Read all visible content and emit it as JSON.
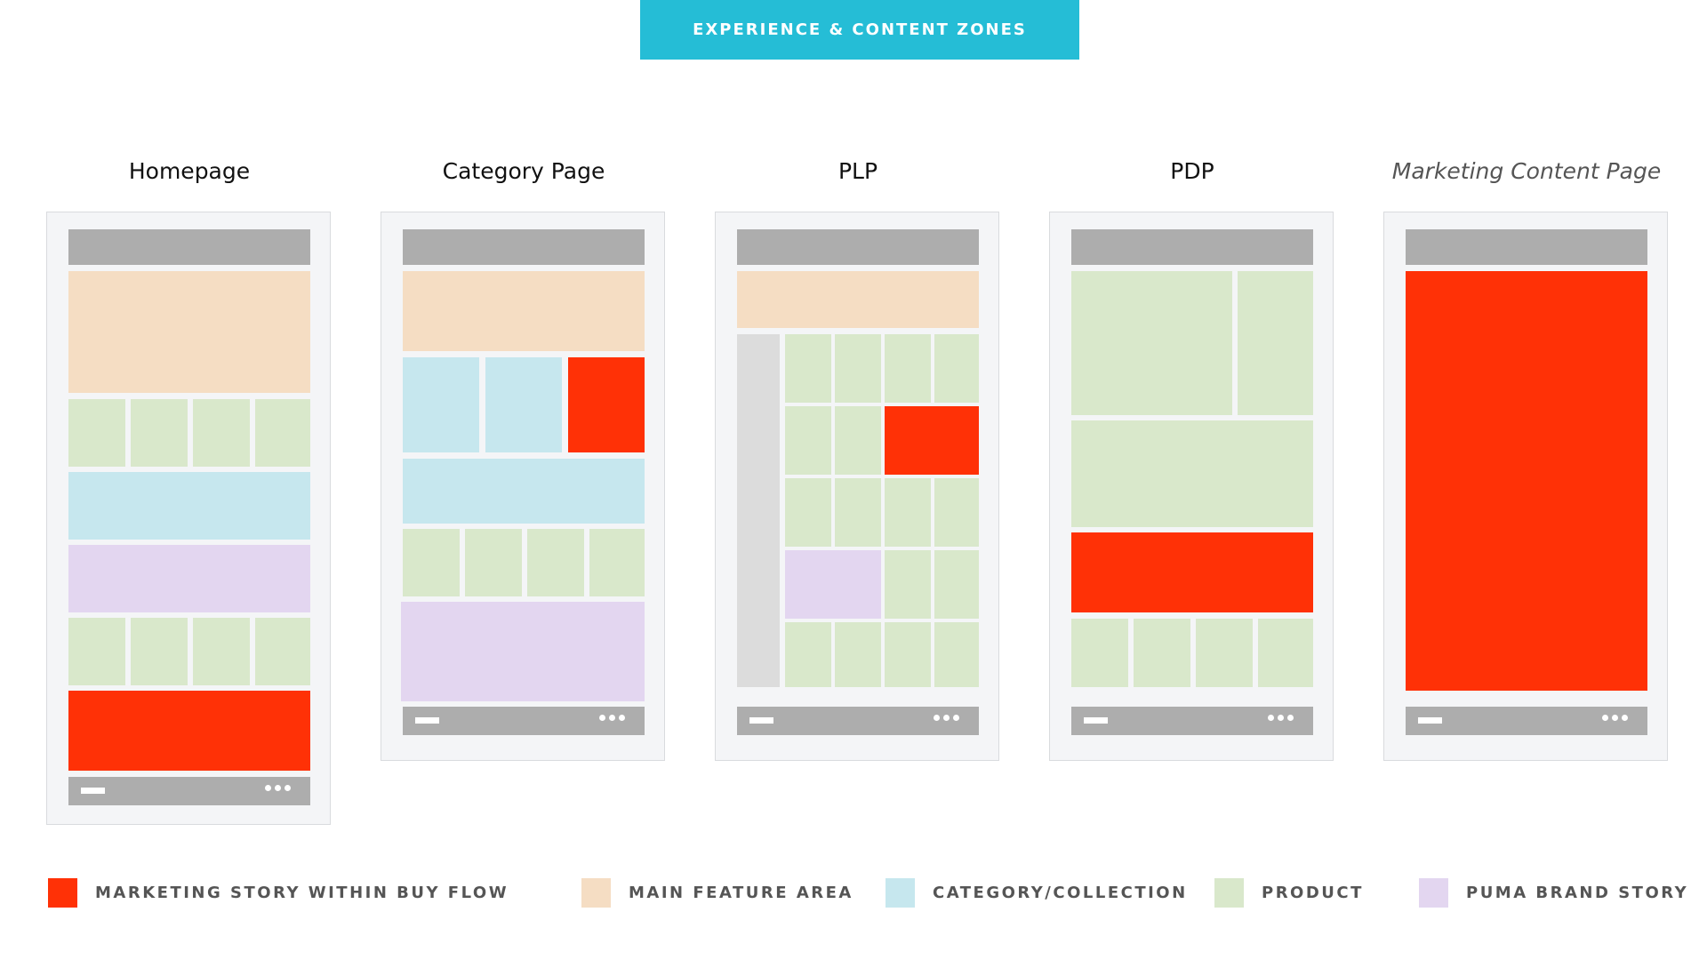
{
  "banner": {
    "label": "EXPERIENCE & CONTENT ZONES"
  },
  "pages": [
    {
      "title": "Homepage"
    },
    {
      "title": "Category Page"
    },
    {
      "title": "PLP"
    },
    {
      "title": "PDP"
    },
    {
      "title": "Marketing Content Page"
    }
  ],
  "legend": [
    {
      "label": "MARKETING STORY WITHIN BUY FLOW",
      "color": "#ff3106"
    },
    {
      "label": "MAIN FEATURE AREA",
      "color": "#f5ddc3"
    },
    {
      "label": "CATEGORY/COLLECTION",
      "color": "#c6e7ee"
    },
    {
      "label": "PRODUCT",
      "color": "#d9e8cb"
    },
    {
      "label": "PUMA BRAND STORY",
      "color": "#e3d6f0"
    }
  ],
  "colors": {
    "banner": "#25bdd6",
    "header_footer": "#adadad",
    "sidebar": "#dcdcdc"
  }
}
